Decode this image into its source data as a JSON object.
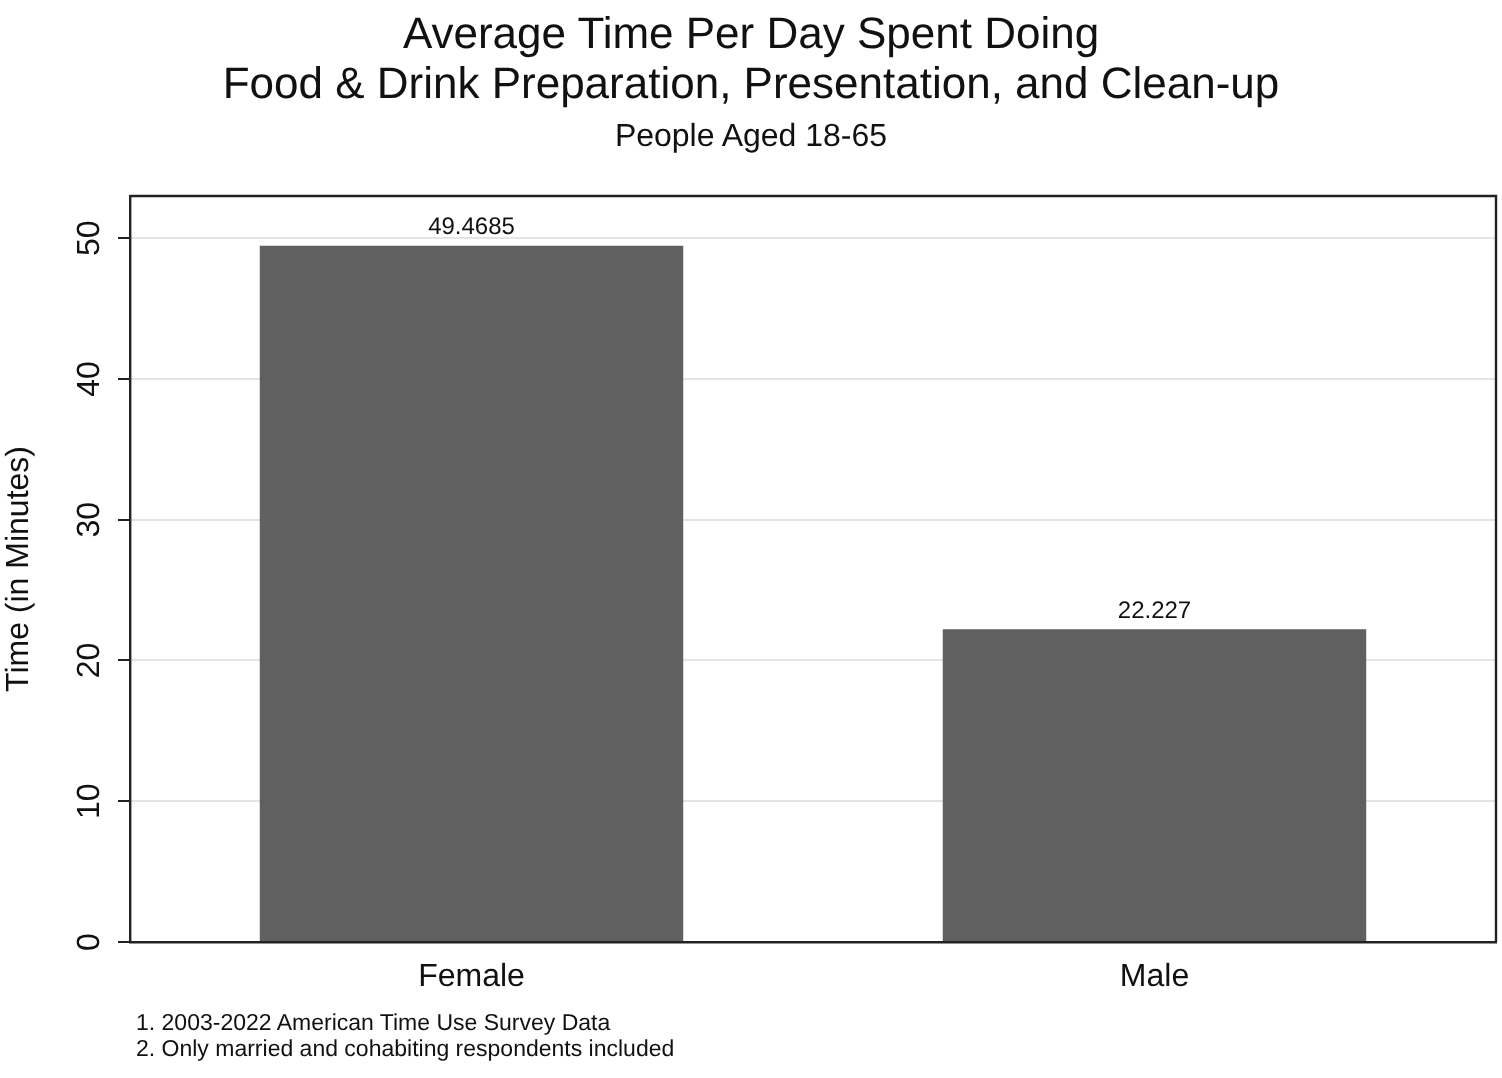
{
  "chart_data": {
    "type": "bar",
    "title": "Average Time Per Day Spent Doing\nFood & Drink Preparation, Presentation, and Clean-up",
    "subtitle": "People Aged 18-65",
    "ylabel": "Time (in Minutes)",
    "categories": [
      "Female",
      "Male"
    ],
    "values": [
      49.4685,
      22.227
    ],
    "color": "#606060",
    "ylim": [
      0,
      53
    ],
    "yticks": [
      0,
      10,
      20,
      30,
      40,
      50
    ],
    "grid": "y",
    "data_labels": true,
    "legend": false,
    "annotations": [
      "1. 2003-2022 American Time Use Survey Data",
      "2. Only married and cohabiting respondents included"
    ]
  }
}
